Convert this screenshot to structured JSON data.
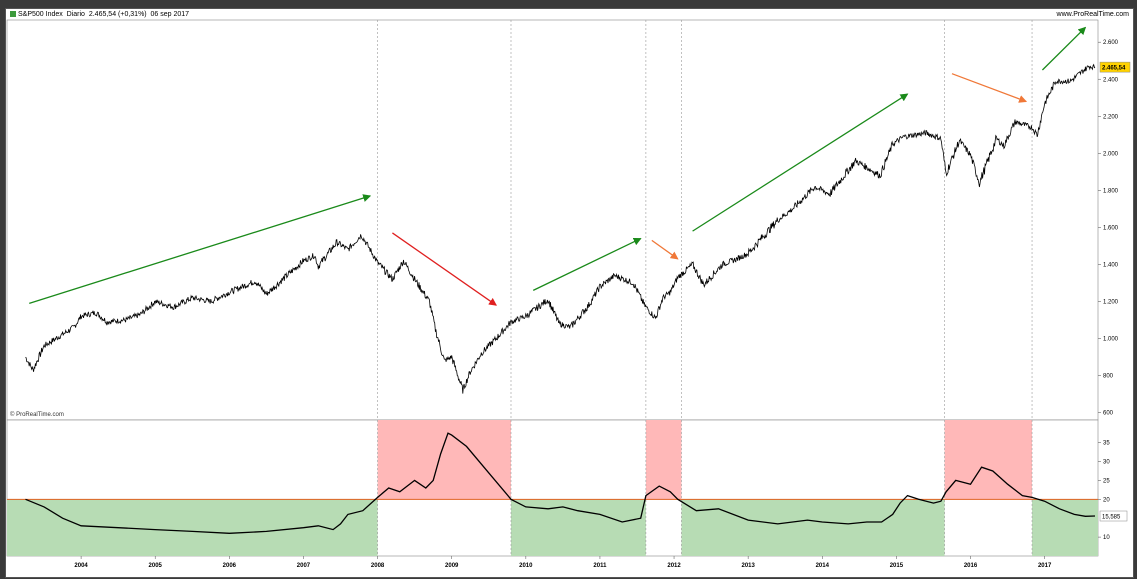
{
  "header": {
    "instrument": "S&P500 Index",
    "timeframe": "Diario",
    "price_change": "2.465,54 (+0,31%)",
    "date": "06 sep 2017",
    "website": "www.ProRealTime.com"
  },
  "watermark": "© ProRealTime.com",
  "colors": {
    "price_line": "#000000",
    "vol_line": "#000000",
    "green_zone": "#b7dcb4",
    "red_zone": "#ffb8b8",
    "threshold_line": "#e06020",
    "arrow_green": "#1a8a1a",
    "arrow_red": "#e02020",
    "arrow_orange": "#f07838",
    "last_price_bg": "#ffd200",
    "last_vol_bg": "#ffffff"
  },
  "chart_data": [
    {
      "type": "line",
      "series": [
        {
          "values": [
            [
              2003.25,
              900
            ],
            [
              2003.35,
              830
            ],
            [
              2003.5,
              960
            ],
            [
              2003.7,
              1010
            ],
            [
              2003.9,
              1060
            ],
            [
              2004.0,
              1120
            ],
            [
              2004.2,
              1140
            ],
            [
              2004.35,
              1090
            ],
            [
              2004.6,
              1100
            ],
            [
              2004.8,
              1130
            ],
            [
              2005.0,
              1200
            ],
            [
              2005.25,
              1170
            ],
            [
              2005.5,
              1220
            ],
            [
              2005.75,
              1200
            ],
            [
              2006.0,
              1250
            ],
            [
              2006.35,
              1310
            ],
            [
              2006.5,
              1240
            ],
            [
              2006.75,
              1330
            ],
            [
              2007.0,
              1420
            ],
            [
              2007.15,
              1450
            ],
            [
              2007.2,
              1390
            ],
            [
              2007.45,
              1520
            ],
            [
              2007.6,
              1480
            ],
            [
              2007.78,
              1560
            ],
            [
              2007.9,
              1480
            ],
            [
              2008.0,
              1410
            ],
            [
              2008.2,
              1320
            ],
            [
              2008.35,
              1420
            ],
            [
              2008.5,
              1320
            ],
            [
              2008.7,
              1200
            ],
            [
              2008.78,
              1050
            ],
            [
              2008.9,
              880
            ],
            [
              2009.0,
              900
            ],
            [
              2009.15,
              720
            ],
            [
              2009.25,
              820
            ],
            [
              2009.4,
              920
            ],
            [
              2009.6,
              1000
            ],
            [
              2009.8,
              1090
            ],
            [
              2010.0,
              1120
            ],
            [
              2010.3,
              1210
            ],
            [
              2010.45,
              1080
            ],
            [
              2010.6,
              1060
            ],
            [
              2010.85,
              1180
            ],
            [
              2011.0,
              1280
            ],
            [
              2011.2,
              1340
            ],
            [
              2011.45,
              1300
            ],
            [
              2011.6,
              1180
            ],
            [
              2011.75,
              1110
            ],
            [
              2011.85,
              1220
            ],
            [
              2011.95,
              1250
            ],
            [
              2012.05,
              1330
            ],
            [
              2012.25,
              1400
            ],
            [
              2012.4,
              1290
            ],
            [
              2012.65,
              1400
            ],
            [
              2012.85,
              1430
            ],
            [
              2013.0,
              1460
            ],
            [
              2013.4,
              1640
            ],
            [
              2013.6,
              1700
            ],
            [
              2013.9,
              1820
            ],
            [
              2014.1,
              1780
            ],
            [
              2014.45,
              1960
            ],
            [
              2014.78,
              1880
            ],
            [
              2014.95,
              2050
            ],
            [
              2015.1,
              2090
            ],
            [
              2015.4,
              2110
            ],
            [
              2015.6,
              2080
            ],
            [
              2015.67,
              1890
            ],
            [
              2015.85,
              2070
            ],
            [
              2016.0,
              1990
            ],
            [
              2016.12,
              1840
            ],
            [
              2016.35,
              2080
            ],
            [
              2016.45,
              2040
            ],
            [
              2016.6,
              2170
            ],
            [
              2016.83,
              2140
            ],
            [
              2016.9,
              2100
            ],
            [
              2017.0,
              2270
            ],
            [
              2017.15,
              2390
            ],
            [
              2017.35,
              2390
            ],
            [
              2017.5,
              2440
            ],
            [
              2017.6,
              2470
            ],
            [
              2017.68,
              2465.54
            ]
          ]
        }
      ],
      "ylim": [
        560,
        2720
      ],
      "y_ticks": [
        600,
        800,
        1000,
        1200,
        1400,
        1600,
        1800,
        2000,
        2200,
        2400,
        2600
      ],
      "y_tick_labels": [
        "600",
        "800",
        "1.000",
        "1.200",
        "1.400",
        "1.600",
        "1.800",
        "2.000",
        "2.200",
        "2.400",
        "2.600"
      ],
      "last_value_label": "2.465,54",
      "trend_arrows": [
        {
          "from": [
            2003.3,
            1190
          ],
          "to": [
            2007.9,
            1770
          ],
          "color": "green"
        },
        {
          "from": [
            2008.2,
            1570
          ],
          "to": [
            2009.6,
            1180
          ],
          "color": "red"
        },
        {
          "from": [
            2010.1,
            1260
          ],
          "to": [
            2011.55,
            1540
          ],
          "color": "green"
        },
        {
          "from": [
            2011.7,
            1530
          ],
          "to": [
            2012.05,
            1430
          ],
          "color": "orange"
        },
        {
          "from": [
            2012.25,
            1580
          ],
          "to": [
            2015.15,
            2320
          ],
          "color": "green"
        },
        {
          "from": [
            2015.75,
            2430
          ],
          "to": [
            2016.75,
            2280
          ],
          "color": "orange"
        },
        {
          "from": [
            2016.97,
            2450
          ],
          "to": [
            2017.55,
            2680
          ],
          "color": "green"
        }
      ]
    },
    {
      "type": "area",
      "series": [
        {
          "values": [
            [
              2003.25,
              20
            ],
            [
              2003.5,
              18
            ],
            [
              2003.75,
              15
            ],
            [
              2004.0,
              13
            ],
            [
              2004.5,
              12.5
            ],
            [
              2005.0,
              12
            ],
            [
              2005.5,
              11.5
            ],
            [
              2006.0,
              11
            ],
            [
              2006.5,
              11.5
            ],
            [
              2007.0,
              12.5
            ],
            [
              2007.2,
              13
            ],
            [
              2007.4,
              12
            ],
            [
              2007.5,
              13.5
            ],
            [
              2007.6,
              16
            ],
            [
              2007.8,
              17
            ],
            [
              2008.0,
              20.5
            ],
            [
              2008.15,
              23
            ],
            [
              2008.3,
              22
            ],
            [
              2008.5,
              25
            ],
            [
              2008.65,
              23
            ],
            [
              2008.75,
              25
            ],
            [
              2008.85,
              32
            ],
            [
              2008.95,
              37.5
            ],
            [
              2009.0,
              37
            ],
            [
              2009.2,
              34
            ],
            [
              2009.5,
              27
            ],
            [
              2009.8,
              20
            ],
            [
              2010.0,
              18
            ],
            [
              2010.3,
              17.5
            ],
            [
              2010.5,
              18
            ],
            [
              2010.7,
              17
            ],
            [
              2011.0,
              16
            ],
            [
              2011.3,
              14
            ],
            [
              2011.55,
              15
            ],
            [
              2011.62,
              21
            ],
            [
              2011.8,
              23.5
            ],
            [
              2011.95,
              22
            ],
            [
              2012.05,
              20
            ],
            [
              2012.3,
              17
            ],
            [
              2012.6,
              17.5
            ],
            [
              2013.0,
              14.5
            ],
            [
              2013.4,
              13.5
            ],
            [
              2013.8,
              14.5
            ],
            [
              2014.0,
              14
            ],
            [
              2014.35,
              13.5
            ],
            [
              2014.6,
              14
            ],
            [
              2014.8,
              14
            ],
            [
              2014.95,
              16
            ],
            [
              2015.05,
              19
            ],
            [
              2015.15,
              21
            ],
            [
              2015.3,
              20
            ],
            [
              2015.5,
              19
            ],
            [
              2015.6,
              19.5
            ],
            [
              2015.67,
              22
            ],
            [
              2015.8,
              25
            ],
            [
              2016.0,
              24
            ],
            [
              2016.15,
              28.5
            ],
            [
              2016.3,
              27.5
            ],
            [
              2016.5,
              24
            ],
            [
              2016.7,
              21
            ],
            [
              2016.83,
              20.5
            ],
            [
              2017.0,
              19.5
            ],
            [
              2017.2,
              17.5
            ],
            [
              2017.4,
              16
            ],
            [
              2017.55,
              15.5
            ],
            [
              2017.68,
              15.585
            ]
          ]
        }
      ],
      "threshold": 20,
      "ylim": [
        5,
        41
      ],
      "y_ticks": [
        10,
        20,
        25,
        30,
        35
      ],
      "y_tick_labels": [
        "10",
        "20",
        "25",
        "30",
        "35"
      ],
      "last_value_label": "15,585",
      "zones": [
        {
          "from": 2003.0,
          "to": 2008.0,
          "color": "green"
        },
        {
          "from": 2008.0,
          "to": 2009.8,
          "color": "red"
        },
        {
          "from": 2009.8,
          "to": 2011.62,
          "color": "green"
        },
        {
          "from": 2011.62,
          "to": 2012.1,
          "color": "red"
        },
        {
          "from": 2012.1,
          "to": 2015.65,
          "color": "green"
        },
        {
          "from": 2015.65,
          "to": 2016.83,
          "color": "red"
        },
        {
          "from": 2016.83,
          "to": 2017.72,
          "color": "green"
        }
      ]
    }
  ],
  "xlim": [
    2003.0,
    2017.72
  ],
  "x_ticks": [
    2004,
    2005,
    2006,
    2007,
    2008,
    2009,
    2010,
    2011,
    2012,
    2013,
    2014,
    2015,
    2016,
    2017
  ],
  "x_tick_labels": [
    "2004",
    "2005",
    "2006",
    "2007",
    "2008",
    "2009",
    "2010",
    "2011",
    "2012",
    "2013",
    "2014",
    "2015",
    "2016",
    "2017"
  ],
  "vertical_markers": [
    2008.0,
    2009.8,
    2011.62,
    2012.1,
    2015.65,
    2016.83
  ]
}
